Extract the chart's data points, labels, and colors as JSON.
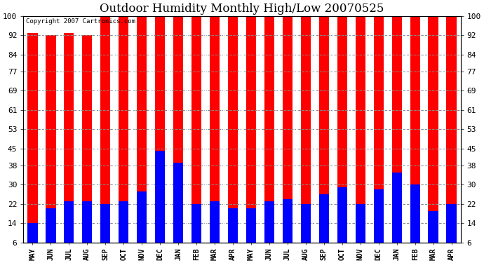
{
  "title": "Outdoor Humidity Monthly High/Low 20070525",
  "copyright_text": "Copyright 2007 Cartronics.com",
  "categories": [
    "MAY",
    "JUN",
    "JUL",
    "AUG",
    "SEP",
    "OCT",
    "NOV",
    "DEC",
    "JAN",
    "FEB",
    "MAR",
    "APR",
    "MAY",
    "JUN",
    "JUL",
    "AUG",
    "SEP",
    "OCT",
    "NOV",
    "DEC",
    "JAN",
    "FEB",
    "MAR",
    "APR"
  ],
  "highs": [
    93,
    92,
    93,
    92,
    100,
    100,
    100,
    100,
    100,
    100,
    100,
    100,
    100,
    100,
    100,
    100,
    100,
    100,
    100,
    100,
    100,
    100,
    100,
    100
  ],
  "lows": [
    14,
    20,
    23,
    23,
    22,
    23,
    27,
    44,
    39,
    22,
    23,
    20,
    20,
    23,
    24,
    22,
    26,
    29,
    22,
    28,
    35,
    30,
    19,
    22
  ],
  "high_color": "#ff0000",
  "low_color": "#0000ff",
  "bg_color": "#ffffff",
  "plot_bg_color": "#ffffff",
  "grid_color": "#888888",
  "yticks": [
    6,
    14,
    22,
    30,
    38,
    45,
    53,
    61,
    69,
    77,
    84,
    92,
    100
  ],
  "ylim": [
    6,
    100
  ],
  "title_fontsize": 12,
  "bar_width": 0.55,
  "border_color": "#000000"
}
